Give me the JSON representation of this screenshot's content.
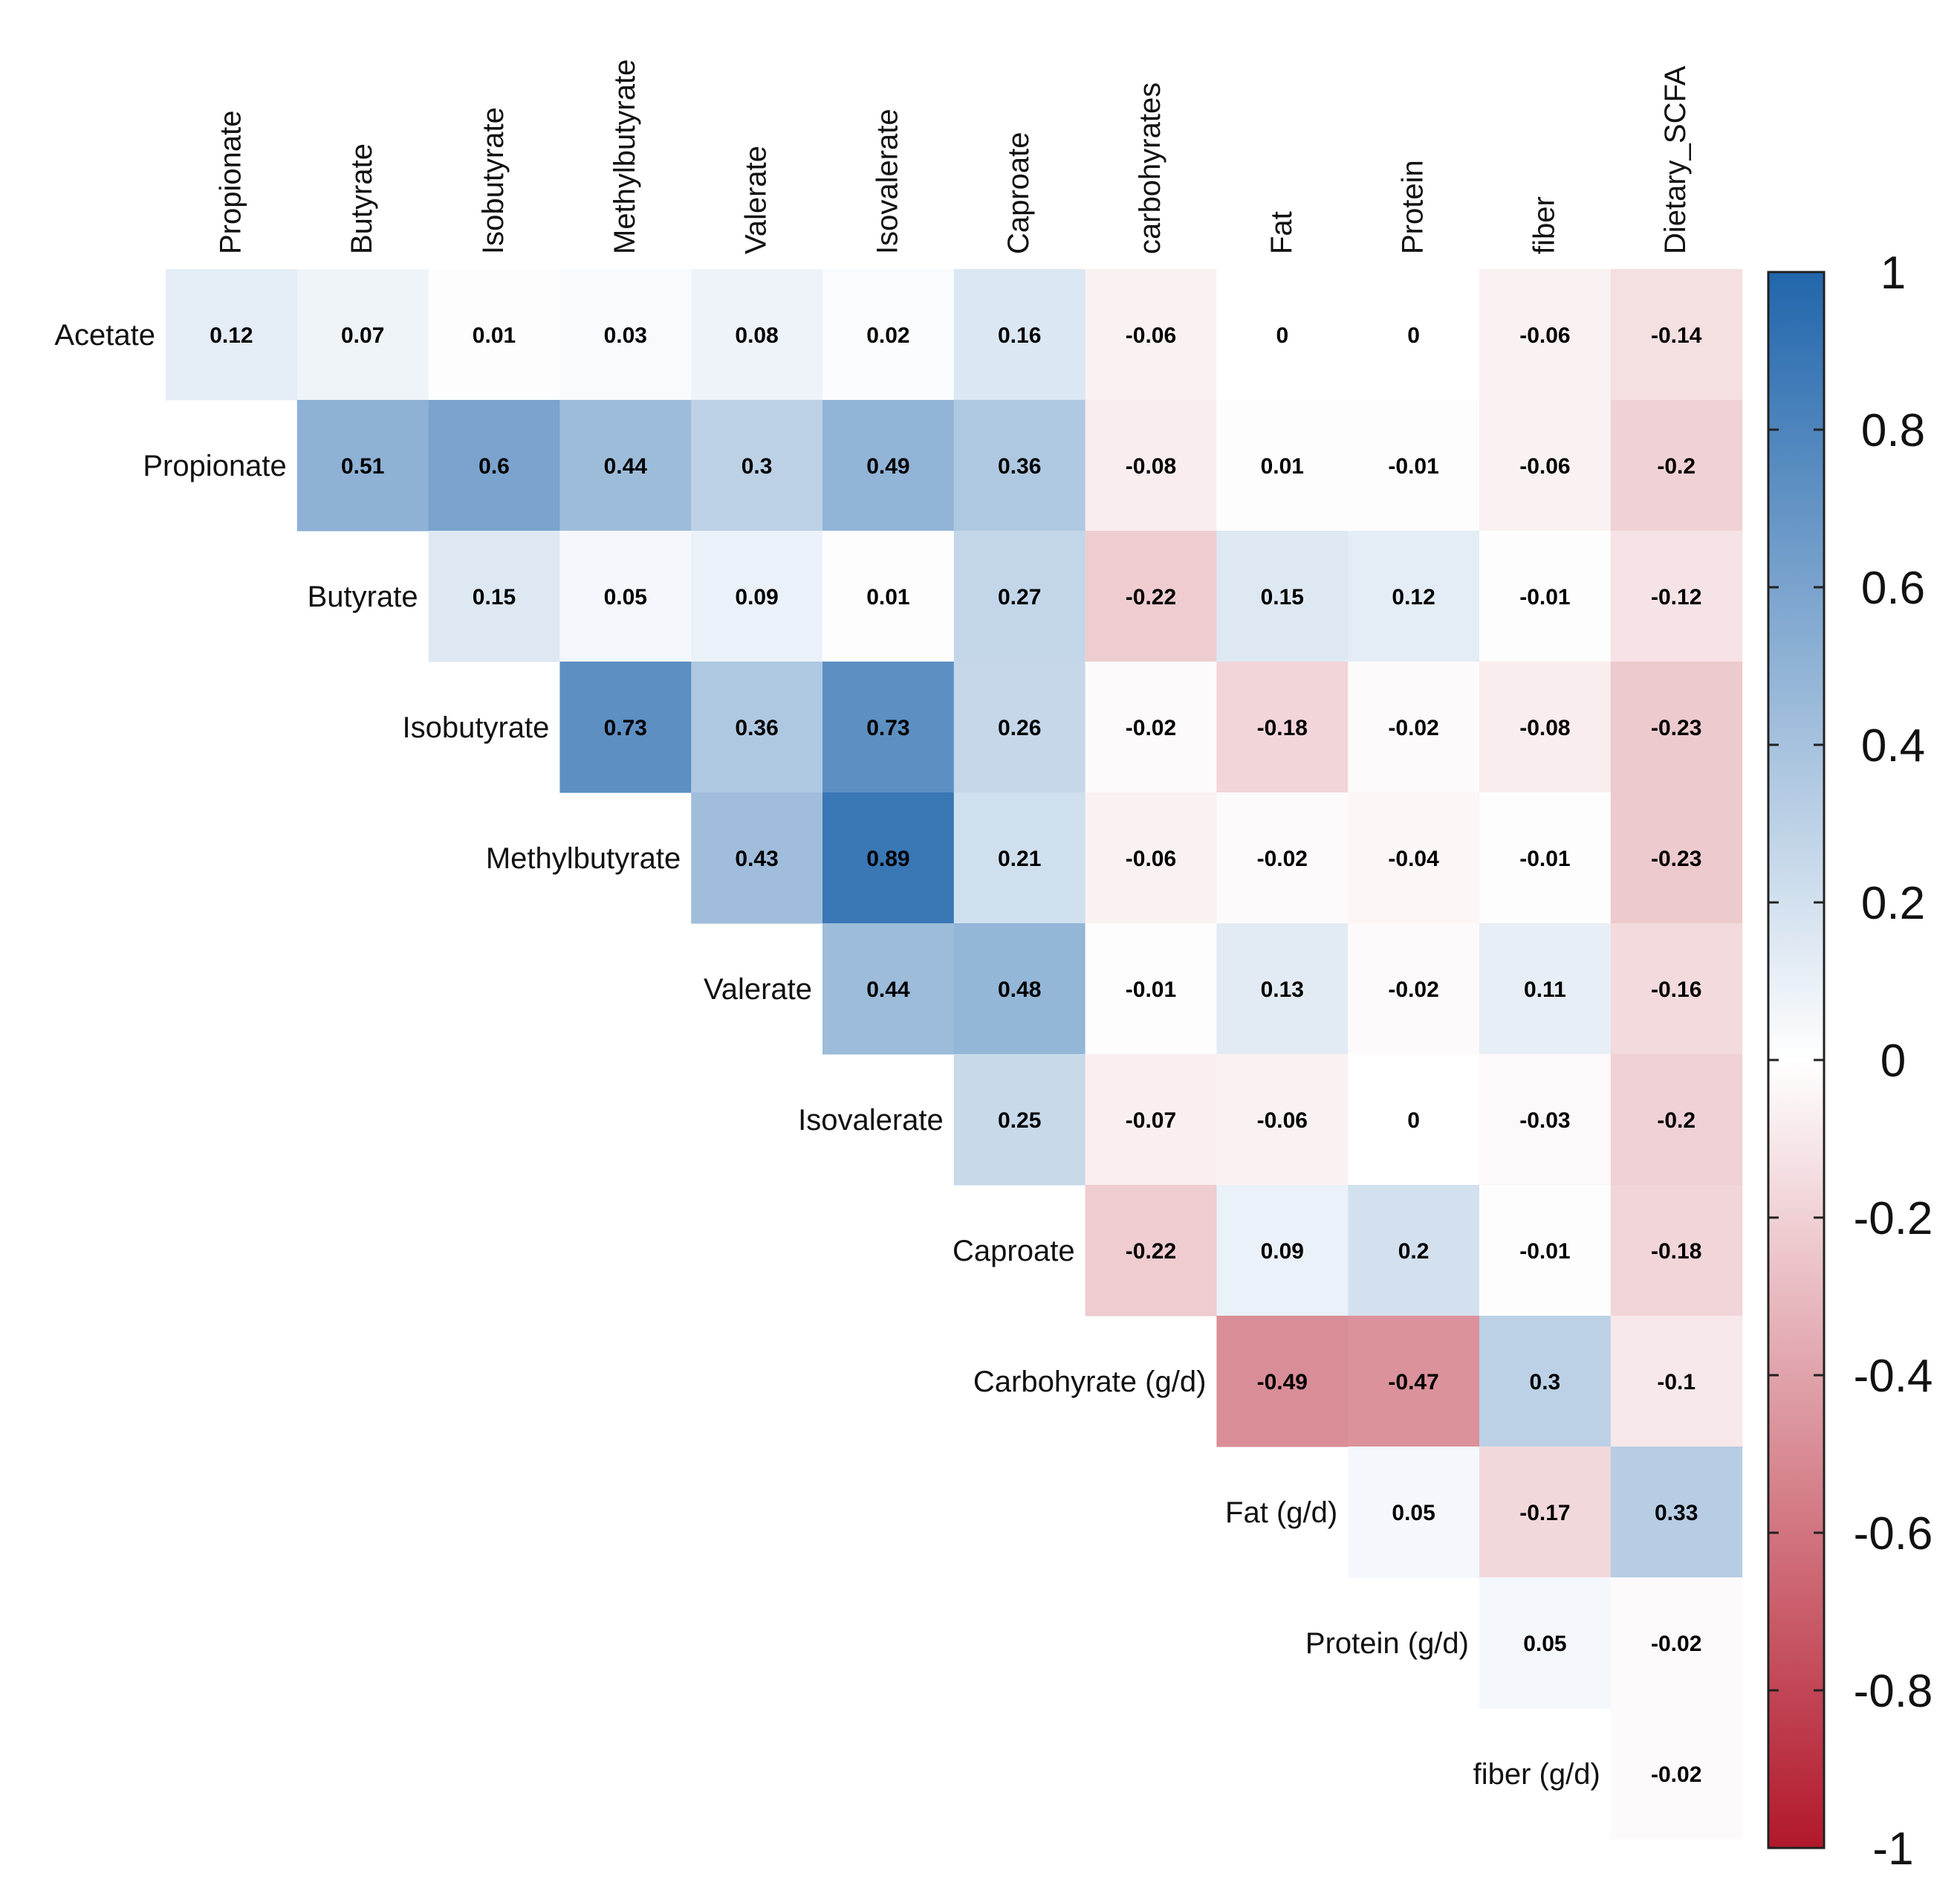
{
  "chart_data": {
    "type": "heatmap",
    "title": "",
    "layout": "upper-triangle correlation matrix",
    "row_labels": [
      "Acetate",
      "Propionate",
      "Butyrate",
      "Isobutyrate",
      "Methylbutyrate",
      "Valerate",
      "Isovalerate",
      "Caproate",
      "Carbohyrate (g/d)",
      "Fat (g/d)",
      "Protein (g/d)",
      "fiber (g/d)"
    ],
    "col_labels": [
      "Propionate",
      "Butyrate",
      "Isobutyrate",
      "Methylbutyrate",
      "Valerate",
      "Isovalerate",
      "Caproate",
      "carbohyrates",
      "Fat",
      "Protein",
      "fiber",
      "Dietary_SCFA"
    ],
    "values": [
      [
        0.12,
        0.07,
        0.01,
        0.03,
        0.08,
        0.02,
        0.16,
        -0.06,
        0,
        0,
        -0.06,
        -0.14
      ],
      [
        0.51,
        0.6,
        0.44,
        0.3,
        0.49,
        0.36,
        -0.08,
        0.01,
        -0.01,
        -0.06,
        -0.2
      ],
      [
        0.15,
        0.05,
        0.09,
        0.01,
        0.27,
        -0.22,
        0.15,
        0.12,
        -0.01,
        -0.12
      ],
      [
        0.73,
        0.36,
        0.73,
        0.26,
        -0.02,
        -0.18,
        -0.02,
        -0.08,
        -0.23
      ],
      [
        0.43,
        0.89,
        0.21,
        -0.06,
        -0.02,
        -0.04,
        -0.01,
        -0.23
      ],
      [
        0.44,
        0.48,
        -0.01,
        0.13,
        -0.02,
        0.11,
        -0.16
      ],
      [
        0.25,
        -0.07,
        -0.06,
        0,
        -0.03,
        -0.2
      ],
      [
        -0.22,
        0.09,
        0.2,
        -0.01,
        -0.18
      ],
      [
        -0.49,
        -0.47,
        0.3,
        -0.1
      ],
      [
        0.05,
        -0.17,
        0.33
      ],
      [
        0.05,
        -0.02
      ],
      [
        -0.02
      ]
    ],
    "colorbar": {
      "range": [
        -1,
        1
      ],
      "ticks": [
        "1",
        "0.8",
        "0.6",
        "0.4",
        "0.2",
        "0",
        "-0.2",
        "-0.4",
        "-0.6",
        "-0.8",
        "-1"
      ],
      "colors": {
        "low": "#b2182b",
        "mid": "#ffffff",
        "high": "#2166ac"
      }
    },
    "xlabel": "",
    "ylabel": ""
  }
}
